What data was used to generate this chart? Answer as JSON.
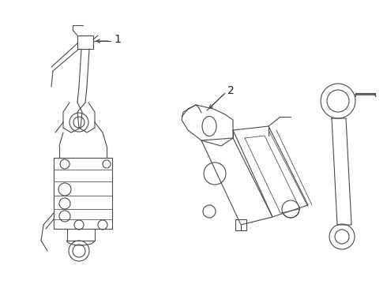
{
  "background_color": "#f0f0f0",
  "line_color": "#4a4a4a",
  "line_width": 0.8,
  "fig_width": 4.9,
  "fig_height": 3.6,
  "dpi": 100,
  "label1_text": "1",
  "label2_text": "2",
  "img_background": "#f0f0f0"
}
